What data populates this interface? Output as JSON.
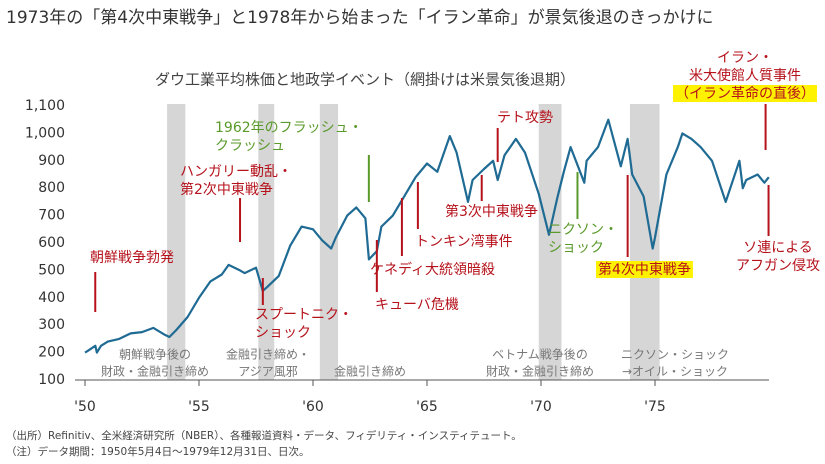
{
  "chart_data": {
    "type": "line",
    "title": "1973年の「第4次中東戦争」と1978年から始まった「イラン革命」が景気後退のきっかけに",
    "subtitle": "ダウ工業平均株価と地政学イベント（網掛けは米景気後退期）",
    "xlim": [
      1950,
      1980
    ],
    "xticks": [
      {
        "value": 1950,
        "label": "'50"
      },
      {
        "value": 1955,
        "label": "'55"
      },
      {
        "value": 1960,
        "label": "'60"
      },
      {
        "value": 1965,
        "label": "'65"
      },
      {
        "value": 1970,
        "label": "'70"
      },
      {
        "value": 1975,
        "label": "'75"
      }
    ],
    "ylim": [
      100,
      1100
    ],
    "yticks": [
      100,
      200,
      300,
      400,
      500,
      600,
      700,
      800,
      900,
      {
        "value": 1000,
        "label": "1,000"
      },
      {
        "value": 1100,
        "label": "1,100"
      }
    ],
    "series": [
      {
        "name": "ダウ工業平均株価",
        "color": "#1f6b94",
        "x": [
          1950.0,
          1950.1,
          1950.45,
          1950.52,
          1950.7,
          1951.0,
          1951.5,
          1952.0,
          1952.5,
          1953.0,
          1953.5,
          1953.7,
          1954.0,
          1954.5,
          1955.0,
          1955.5,
          1956.0,
          1956.3,
          1956.8,
          1957.0,
          1957.5,
          1957.8,
          1958.0,
          1958.5,
          1959.0,
          1959.5,
          1960.0,
          1960.4,
          1960.8,
          1961.0,
          1961.5,
          1961.9,
          1962.3,
          1962.45,
          1962.8,
          1963.0,
          1963.5,
          1964.0,
          1964.5,
          1965.0,
          1965.45,
          1966.0,
          1966.3,
          1966.8,
          1967.0,
          1967.5,
          1967.9,
          1968.1,
          1968.4,
          1968.9,
          1969.3,
          1969.9,
          1970.35,
          1970.7,
          1971.0,
          1971.3,
          1971.9,
          1972.0,
          1972.5,
          1972.95,
          1973.5,
          1973.8,
          1974.0,
          1974.5,
          1974.9,
          1975.0,
          1975.5,
          1976.0,
          1976.2,
          1976.6,
          1977.0,
          1977.5,
          1978.1,
          1978.7,
          1978.85,
          1979.0,
          1979.5,
          1979.8,
          1979.99
        ],
        "values": [
          200,
          205,
          225,
          200,
          225,
          240,
          250,
          270,
          275,
          290,
          265,
          257,
          282,
          330,
          400,
          460,
          485,
          520,
          500,
          490,
          510,
          425,
          440,
          480,
          590,
          660,
          650,
          610,
          580,
          620,
          700,
          730,
          690,
          540,
          570,
          660,
          700,
          770,
          840,
          890,
          860,
          990,
          930,
          750,
          830,
          870,
          900,
          830,
          920,
          980,
          930,
          780,
          630,
          760,
          860,
          950,
          820,
          900,
          950,
          1050,
          880,
          980,
          850,
          770,
          580,
          620,
          850,
          950,
          1000,
          980,
          950,
          900,
          750,
          900,
          800,
          830,
          850,
          820,
          840
        ]
      }
    ],
    "recessions": [
      [
        1953.6,
        1954.4
      ],
      [
        1957.6,
        1958.3
      ],
      [
        1960.3,
        1961.1
      ],
      [
        1969.9,
        1970.9
      ],
      [
        1973.9,
        1975.2
      ]
    ],
    "recession_labels": [
      [
        "朝鮮戦争後の",
        "財政・金融引き締め"
      ],
      [
        "金融引き締め・",
        "アジア風邪"
      ],
      [
        "金融引き締め"
      ],
      [
        "ベトナム戦争後の",
        "財政・金融引き締め"
      ],
      [
        "ニクソン・ショック",
        "→オイル・ショック"
      ]
    ],
    "annotations": [
      {
        "lines": [
          "朝鮮戦争勃発"
        ],
        "x": 1950.45,
        "color": "#b5121b"
      },
      {
        "lines": [
          "ハンガリー動乱・",
          "第2次中東戦争"
        ],
        "x": 1956.8,
        "color": "#b5121b"
      },
      {
        "lines": [
          "スプートニク・",
          "ショック"
        ],
        "x": 1957.8,
        "color": "#b5121b"
      },
      {
        "lines": [
          "1962年のフラッシュ・",
          "クラッシュ"
        ],
        "x": 1962.45,
        "color": "#5a9a2a"
      },
      {
        "lines": [
          "キューバ危機"
        ],
        "x": 1962.8,
        "color": "#b5121b"
      },
      {
        "lines": [
          "ケネディ大統領暗殺"
        ],
        "x": 1963.9,
        "color": "#b5121b"
      },
      {
        "lines": [
          "トンキン湾事件"
        ],
        "x": 1964.6,
        "color": "#b5121b"
      },
      {
        "lines": [
          "第3次中東戦争"
        ],
        "x": 1967.4,
        "color": "#b5121b"
      },
      {
        "lines": [
          "テト攻勢"
        ],
        "x": 1968.1,
        "color": "#b5121b"
      },
      {
        "lines": [
          "ニクソン・",
          "ショック"
        ],
        "x": 1971.6,
        "color": "#5a9a2a"
      },
      {
        "lines": [
          "第4次中東戦争"
        ],
        "x": 1973.8,
        "color": "#b5121b",
        "highlight": true
      },
      {
        "lines": [
          "イラン・",
          "米大使館人質事件",
          "（イラン革命の直後）"
        ],
        "x": 1979.85,
        "color": "#b5121b",
        "highlight_line": 2
      },
      {
        "lines": [
          "ソ連による",
          "アフガン侵攻"
        ],
        "x": 1979.98,
        "color": "#b5121b"
      }
    ],
    "notes": [
      "（出所）Refinitiv、全米経済研究所（NBER）、各種報道資料・データ、フィデリティ・インスティテュート。",
      "（注）データ期間：1950年5月4日～1979年12月31日、日次。"
    ]
  }
}
